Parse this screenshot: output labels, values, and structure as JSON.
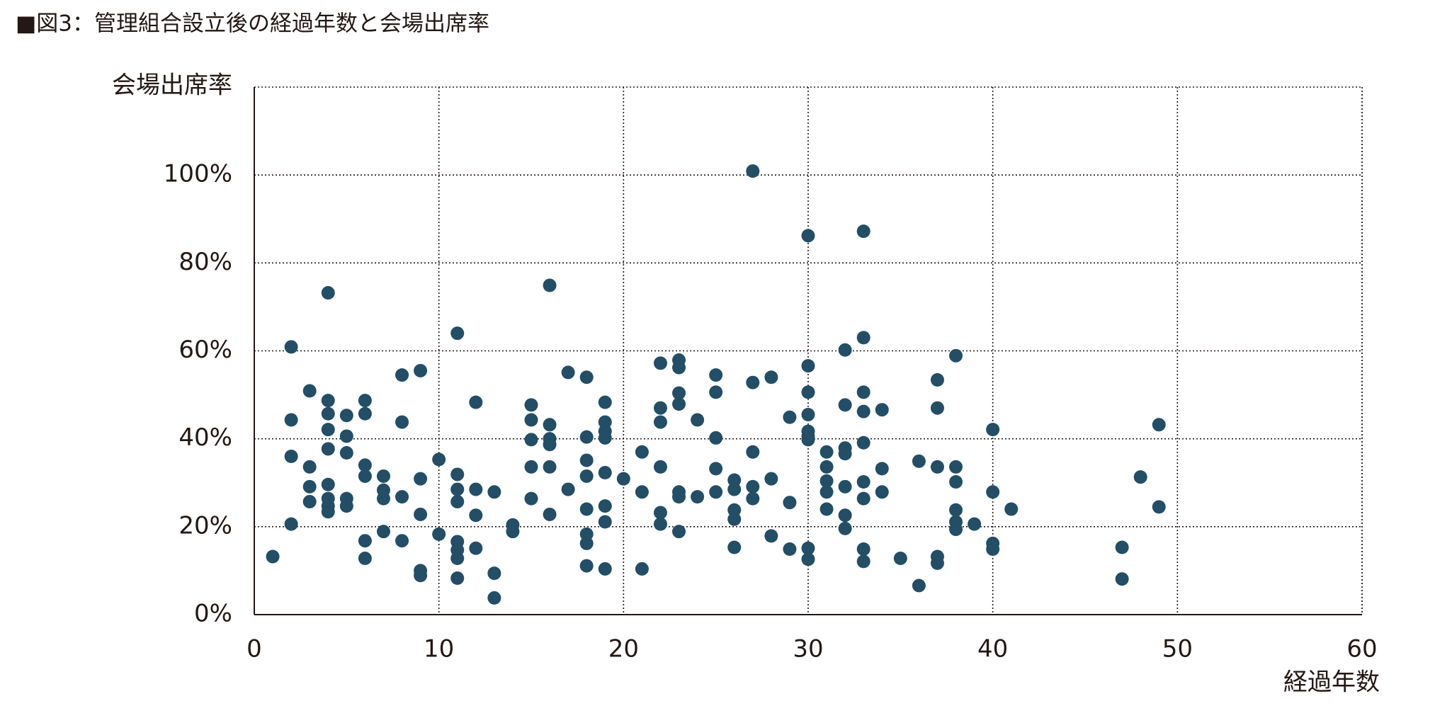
{
  "chart_data": {
    "type": "scatter",
    "title": "■図3：管理組合設立後の経過年数と会場出席率",
    "xlabel": "経過年数",
    "ylabel": "会場出席率",
    "color": "#234e66",
    "grid": true,
    "xlim": [
      0,
      60
    ],
    "xticks": [
      0,
      10,
      20,
      30,
      40,
      50,
      60
    ],
    "ylim": [
      0,
      120
    ],
    "yticks": [
      {
        "value": 0,
        "label": "0%"
      },
      {
        "value": 20,
        "label": "20%"
      },
      {
        "value": 40,
        "label": "40%"
      },
      {
        "value": 60,
        "label": "60%"
      },
      {
        "value": 80,
        "label": "80%"
      },
      {
        "value": 100,
        "label": "100%"
      }
    ],
    "x": [
      1,
      2,
      2,
      2,
      2,
      3,
      3,
      3,
      3,
      4,
      4,
      4,
      4,
      4,
      4,
      4,
      4,
      4,
      5,
      5,
      5,
      5,
      5,
      6,
      6,
      6,
      6,
      6,
      6,
      7,
      7,
      7,
      7,
      8,
      8,
      8,
      8,
      9,
      9,
      9,
      9,
      9,
      10,
      10,
      11,
      11,
      11,
      11,
      11,
      11,
      11,
      11,
      12,
      12,
      12,
      12,
      13,
      13,
      13,
      14,
      14,
      15,
      15,
      15,
      15,
      15,
      16,
      16,
      16,
      16,
      16,
      16,
      17,
      17,
      18,
      18,
      18,
      18,
      18,
      18,
      18,
      18,
      19,
      19,
      19,
      19,
      19,
      19,
      19,
      19,
      20,
      21,
      21,
      21,
      22,
      22,
      22,
      22,
      22,
      22,
      23,
      23,
      23,
      23,
      23,
      23,
      23,
      24,
      24,
      25,
      25,
      25,
      25,
      25,
      26,
      26,
      26,
      26,
      26,
      27,
      27,
      27,
      27,
      27,
      28,
      28,
      28,
      29,
      29,
      29,
      30,
      30,
      30,
      30,
      30,
      30,
      30,
      30,
      30,
      31,
      31,
      31,
      31,
      31,
      32,
      32,
      32,
      32,
      32,
      32,
      32,
      33,
      33,
      33,
      33,
      33,
      33,
      33,
      33,
      33,
      34,
      34,
      34,
      35,
      36,
      36,
      37,
      37,
      37,
      37,
      37,
      38,
      38,
      38,
      38,
      38,
      38,
      39,
      40,
      40,
      40,
      40,
      41,
      47,
      47,
      48,
      49,
      49
    ],
    "values": [
      13.2,
      60.9,
      44.3,
      36,
      20.6,
      50.9,
      33.6,
      29.1,
      25.7,
      73.2,
      48.7,
      45.7,
      42.1,
      37.7,
      29.6,
      26.4,
      24.7,
      23.4,
      45.3,
      40.6,
      36.8,
      26.4,
      24.7,
      48.7,
      45.7,
      34,
      31.5,
      16.8,
      12.8,
      31.5,
      28.3,
      26.4,
      18.9,
      54.5,
      43.8,
      26.8,
      16.8,
      55.5,
      30.9,
      22.8,
      10,
      8.9,
      35.3,
      18.3,
      64,
      31.9,
      28.5,
      25.7,
      16.6,
      14.7,
      12.8,
      8.3,
      48.3,
      28.5,
      22.6,
      15.1,
      27.9,
      9.4,
      3.8,
      20.4,
      18.9,
      47.7,
      44.3,
      39.8,
      33.6,
      26.4,
      74.9,
      43.2,
      40,
      38.7,
      33.6,
      22.8,
      55.1,
      28.5,
      54,
      40.4,
      35.1,
      31.5,
      24,
      18.3,
      16.2,
      11.1,
      48.3,
      43.8,
      41.7,
      40.2,
      32.3,
      24.7,
      21.1,
      10.4,
      30.9,
      37,
      27.9,
      10.4,
      57.2,
      47,
      43.8,
      33.6,
      23.2,
      20.6,
      57.9,
      56.2,
      50.4,
      47.9,
      27.9,
      26.8,
      18.9,
      44.3,
      26.8,
      54.5,
      50.6,
      40.2,
      33.2,
      27.9,
      30.6,
      28.5,
      23.8,
      21.7,
      15.3,
      100.9,
      52.8,
      37,
      29.1,
      26.4,
      54,
      30.9,
      17.9,
      44.9,
      25.5,
      14.9,
      86.2,
      56.6,
      50.6,
      45.5,
      41.7,
      40.6,
      39.8,
      15.1,
      12.6,
      37,
      33.6,
      30.4,
      27.9,
      24,
      60.2,
      47.7,
      37.9,
      36.6,
      29.1,
      22.6,
      19.6,
      87.2,
      63,
      50.6,
      46.2,
      39.1,
      30.2,
      26.4,
      14.9,
      12.1,
      46.6,
      33.2,
      27.9,
      12.8,
      34.9,
      6.6,
      53.4,
      47,
      33.6,
      13.2,
      11.7,
      58.9,
      33.6,
      30.2,
      23.8,
      21.1,
      19.4,
      20.6,
      42.1,
      27.9,
      16.2,
      14.9,
      24,
      15.3,
      8.1,
      31.3,
      43.2,
      24.5
    ]
  }
}
